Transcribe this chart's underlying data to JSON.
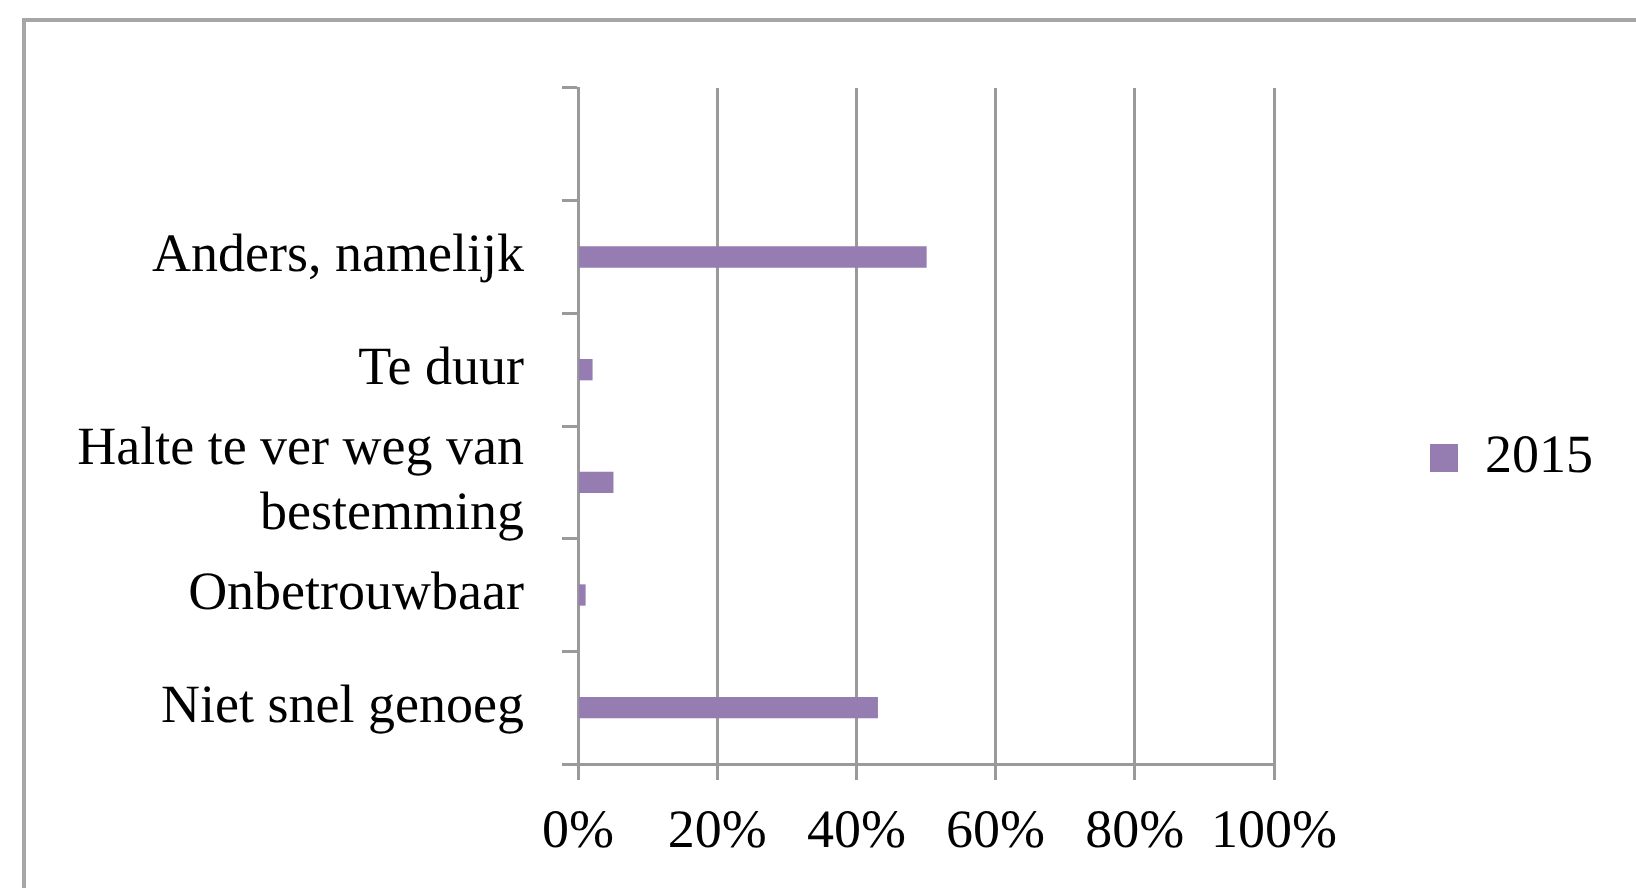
{
  "chart_data": {
    "type": "bar",
    "orientation": "horizontal",
    "categories": [
      null,
      "Anders, namelijk",
      "Te duur",
      "Halte te ver weg van bestemming",
      "Onbetrouwbaar",
      "Niet snel genoeg"
    ],
    "series": [
      {
        "name": "2015",
        "color": "#957cb1",
        "values": [
          null,
          50,
          2,
          5,
          1,
          43
        ]
      }
    ],
    "xlim": [
      0,
      100
    ],
    "xticks": [
      {
        "value": 0,
        "label": "0%"
      },
      {
        "value": 20,
        "label": "20%"
      },
      {
        "value": 40,
        "label": "40%"
      },
      {
        "value": 60,
        "label": "60%"
      },
      {
        "value": 80,
        "label": "80%"
      },
      {
        "value": 100,
        "label": "100%"
      }
    ],
    "grid": "x",
    "legend": "right"
  }
}
